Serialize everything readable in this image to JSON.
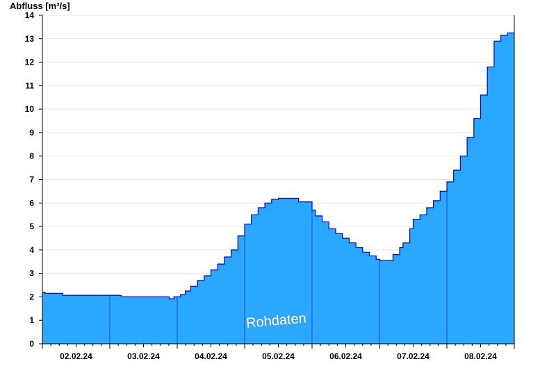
{
  "chart_data": {
    "type": "area",
    "ylabel": "Abfluss [m³/s]",
    "ylim": [
      0,
      14
    ],
    "yticks": [
      0,
      1,
      2,
      3,
      4,
      5,
      6,
      7,
      8,
      9,
      10,
      11,
      12,
      13,
      14
    ],
    "xlim": [
      0,
      7
    ],
    "xlabel_unit": "days",
    "day_labels": [
      "02.02.24",
      "03.02.24",
      "04.02.24",
      "05.02.24",
      "06.02.24",
      "07.02.24",
      "08.02.24"
    ],
    "day_boundaries": [
      1,
      2,
      3,
      4,
      5,
      6
    ],
    "watermark": "Rohdaten",
    "grid": true,
    "fill_color": "#2aa7ff",
    "line_color": "#0000cc",
    "series": [
      {
        "x": [
          0.0,
          0.04,
          0.28,
          0.3,
          1.0,
          1.15,
          1.18,
          1.85,
          1.88,
          1.95,
          2.05,
          2.12,
          2.2,
          2.3,
          2.4,
          2.5,
          2.6,
          2.7,
          2.8,
          2.9,
          3.0,
          3.1,
          3.2,
          3.3,
          3.4,
          3.5,
          3.6,
          3.7,
          3.75,
          3.8,
          4.0,
          4.05,
          4.15,
          4.25,
          4.35,
          4.45,
          4.55,
          4.65,
          4.75,
          4.85,
          4.95,
          5.0,
          5.1,
          5.2,
          5.3,
          5.35,
          5.45,
          5.5,
          5.6,
          5.7,
          5.8,
          5.9,
          6.0,
          6.1,
          6.2,
          6.3,
          6.4,
          6.5,
          6.6,
          6.7,
          6.8,
          6.9,
          6.95,
          7.0
        ],
        "y": [
          2.2,
          2.15,
          2.15,
          2.07,
          2.07,
          2.05,
          2.0,
          2.0,
          1.92,
          2.0,
          2.1,
          2.25,
          2.45,
          2.7,
          2.9,
          3.15,
          3.4,
          3.7,
          4.0,
          4.6,
          5.1,
          5.5,
          5.8,
          6.0,
          6.15,
          6.2,
          6.2,
          6.2,
          6.2,
          6.05,
          5.7,
          5.45,
          5.2,
          4.9,
          4.7,
          4.5,
          4.3,
          4.1,
          3.9,
          3.75,
          3.6,
          3.55,
          3.55,
          3.8,
          4.1,
          4.3,
          4.9,
          5.3,
          5.5,
          5.8,
          6.1,
          6.5,
          6.9,
          7.4,
          8.0,
          8.8,
          9.6,
          10.6,
          11.8,
          12.9,
          13.15,
          13.25,
          13.25,
          13.25
        ]
      }
    ]
  }
}
